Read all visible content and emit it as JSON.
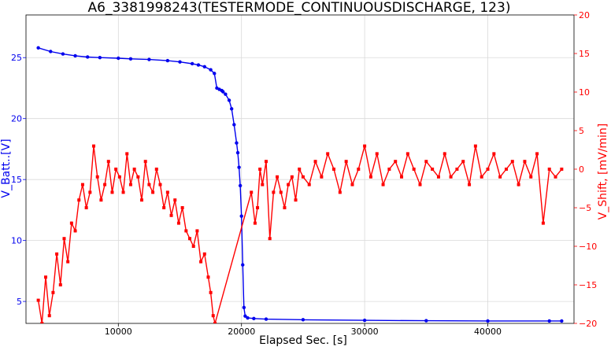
{
  "chart_data": {
    "type": "line",
    "title": "A6_3381998243(TESTERMODE_CONTINUOUSDISCHARGE, 123)",
    "xlabel": "Elapsed Sec. [s]",
    "ylabel_left": "V_Batt..[V]",
    "ylabel_right": "V_Shift, [mV/min]",
    "xlim": [
      2500,
      47000
    ],
    "ylim_left": [
      3.2,
      28.5
    ],
    "ylim_right": [
      -20,
      20
    ],
    "x_ticks": [
      10000,
      20000,
      30000,
      40000
    ],
    "x_tick_labels": [
      "10000",
      "20000",
      "30000",
      "40000"
    ],
    "y_left_ticks": [
      5,
      10,
      15,
      20,
      25
    ],
    "y_left_tick_labels": [
      "5",
      "10",
      "15",
      "20",
      "25"
    ],
    "y_right_ticks": [
      -20,
      -15,
      -10,
      -5,
      0,
      5,
      10,
      15,
      20
    ],
    "y_right_tick_labels": [
      "−20",
      "−15",
      "−10",
      "−5",
      "0",
      "5",
      "10",
      "15",
      "20"
    ],
    "grid": true,
    "colors": {
      "left_series": "#0000ee",
      "right_series": "#ff0000",
      "grid": "#d9d9d9"
    },
    "series": [
      {
        "axis": "left",
        "marker": "circle",
        "x": [
          3500,
          4500,
          5500,
          6500,
          7500,
          8500,
          10000,
          11000,
          12500,
          14000,
          15000,
          16000,
          16500,
          17000,
          17500,
          17800,
          18000,
          18200,
          18400,
          18500,
          18700,
          19000,
          19200,
          19400,
          19600,
          19700,
          19800,
          19900,
          20000,
          20100,
          20200,
          20300,
          20500,
          21000,
          22000,
          25000,
          30000,
          35000,
          40000,
          45000,
          46000
        ],
        "values": [
          25.8,
          25.5,
          25.3,
          25.15,
          25.05,
          25.0,
          24.95,
          24.9,
          24.85,
          24.75,
          24.65,
          24.5,
          24.4,
          24.25,
          24.0,
          23.7,
          22.5,
          22.4,
          22.3,
          22.2,
          22.0,
          21.5,
          20.8,
          19.5,
          18.0,
          17.2,
          16.0,
          14.5,
          12.0,
          8.0,
          4.5,
          3.8,
          3.65,
          3.6,
          3.55,
          3.5,
          3.45,
          3.42,
          3.4,
          3.4,
          3.4
        ]
      },
      {
        "axis": "right",
        "marker": "square",
        "x": [
          3500,
          3800,
          4100,
          4400,
          4700,
          5000,
          5300,
          5600,
          5900,
          6200,
          6500,
          6800,
          7100,
          7400,
          7700,
          8000,
          8300,
          8600,
          8900,
          9200,
          9500,
          9800,
          10100,
          10400,
          10700,
          11000,
          11300,
          11600,
          11900,
          12200,
          12500,
          12800,
          13100,
          13400,
          13700,
          14000,
          14300,
          14600,
          14900,
          15200,
          15500,
          15800,
          16100,
          16400,
          16700,
          17000,
          17300,
          17500,
          17700,
          17850,
          20800,
          21100,
          21300,
          21500,
          21700,
          22000,
          22300,
          22600,
          22900,
          23200,
          23500,
          23800,
          24100,
          24400,
          24700,
          25000,
          25500,
          26000,
          26500,
          27000,
          27500,
          28000,
          28500,
          29000,
          29500,
          30000,
          30500,
          31000,
          31500,
          32000,
          32500,
          33000,
          33500,
          34000,
          34500,
          35000,
          35500,
          36000,
          36500,
          37000,
          37500,
          38000,
          38500,
          39000,
          39500,
          40000,
          40500,
          41000,
          41500,
          42000,
          42500,
          43000,
          43500,
          44000,
          44500,
          45000,
          45500,
          46000
        ],
        "values": [
          -17,
          -20,
          -14,
          -19,
          -16,
          -11,
          -15,
          -9,
          -12,
          -7,
          -8,
          -4,
          -2,
          -5,
          -3,
          3,
          -1,
          -4,
          -2,
          1,
          -3,
          0,
          -1,
          -3,
          2,
          -2,
          0,
          -1,
          -4,
          1,
          -2,
          -3,
          0,
          -2,
          -5,
          -3,
          -6,
          -4,
          -7,
          -5,
          -8,
          -9,
          -10,
          -8,
          -12,
          -11,
          -14,
          -16,
          -19,
          -20,
          -3,
          -7,
          -5,
          0,
          -2,
          1,
          -9,
          -3,
          -1,
          -3,
          -5,
          -2,
          -1,
          -4,
          0,
          -1,
          -2,
          1,
          -1,
          2,
          0,
          -3,
          1,
          -2,
          0,
          3,
          -1,
          2,
          -2,
          0,
          1,
          -1,
          2,
          0,
          -2,
          1,
          0,
          -1,
          2,
          -1,
          0,
          1,
          -2,
          3,
          -1,
          0,
          2,
          -1,
          0,
          1,
          -2,
          1,
          -1,
          2,
          -7,
          0,
          -1,
          0
        ]
      }
    ]
  }
}
